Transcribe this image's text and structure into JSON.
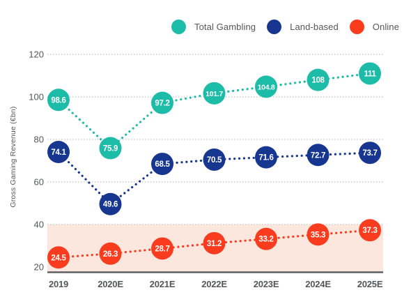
{
  "page": {
    "background": "#ffffff"
  },
  "legend": {
    "items": [
      {
        "label": "Total Gambling",
        "color": "#1CBCA8"
      },
      {
        "label": "Land-based",
        "color": "#17368F"
      },
      {
        "label": "Online",
        "color": "#F93B1E"
      }
    ]
  },
  "chart_data": {
    "type": "line",
    "title": "",
    "xlabel": "",
    "ylabel": "Gross Gaming Revenue (€bn)",
    "categories": [
      "2019",
      "2020E",
      "2021E",
      "2022E",
      "2023E",
      "2024E",
      "2025E"
    ],
    "series": [
      {
        "name": "Total Gambling",
        "color": "#1CBCA8",
        "values": [
          98.6,
          75.9,
          97.2,
          101.7,
          104.8,
          108,
          111
        ]
      },
      {
        "name": "Land-based",
        "color": "#17368F",
        "values": [
          74.1,
          49.6,
          68.5,
          70.5,
          71.6,
          72.7,
          73.7
        ]
      },
      {
        "name": "Online",
        "color": "#F93B1E",
        "values": [
          24.5,
          26.3,
          28.7,
          31.2,
          33.2,
          35.3,
          37.3
        ]
      }
    ],
    "ylim": [
      20,
      120
    ],
    "yticks": [
      20,
      40,
      60,
      80,
      100,
      120
    ],
    "grid": "horizontal-dotted",
    "line_style": "dotted",
    "point_labels": true,
    "legend_position": "top",
    "highlight_band": {
      "from": 20,
      "to": 40,
      "color": "#FCE7DF",
      "series": "Online"
    }
  },
  "colors": {
    "grid": "#C9C9C9",
    "axis_line": "#5F6062",
    "text": "#54565A",
    "band": "#FCE7DF"
  }
}
